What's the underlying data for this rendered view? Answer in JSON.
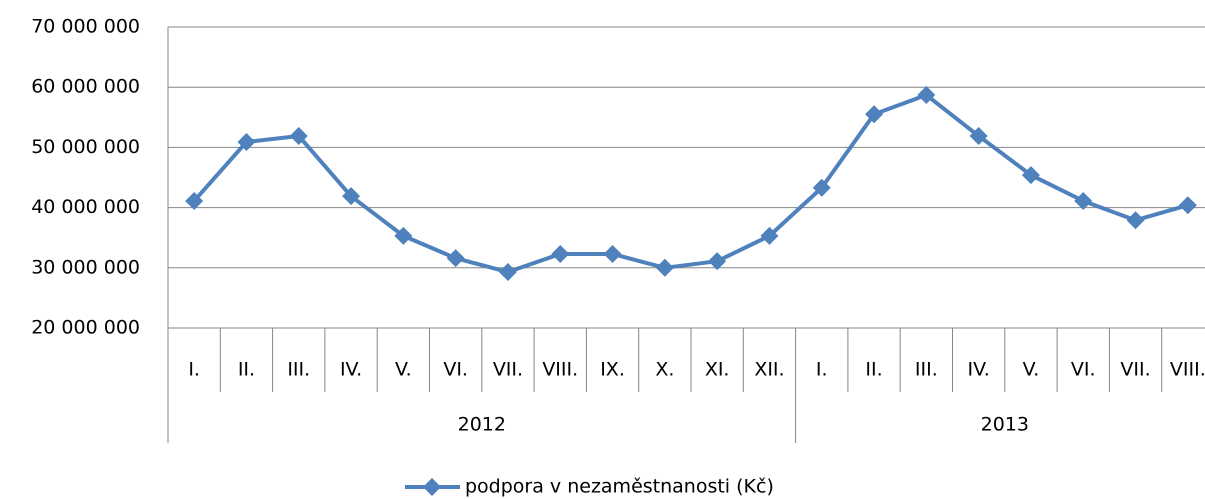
{
  "chart_data": {
    "type": "line",
    "groups": [
      {
        "name": "2012",
        "categories": [
          "I.",
          "II.",
          "III.",
          "IV.",
          "V.",
          "VI.",
          "VII.",
          "VIII.",
          "IX.",
          "X.",
          "XI.",
          "XII."
        ]
      },
      {
        "name": "2013",
        "categories": [
          "I.",
          "II.",
          "III.",
          "IV.",
          "V.",
          "VI.",
          "VII.",
          "VIII."
        ]
      }
    ],
    "series": [
      {
        "name": "podpora v nezaměstnanosti (Kč)",
        "color": "#4f81bd",
        "values": [
          41100000,
          50900000,
          51900000,
          41900000,
          35300000,
          31600000,
          29300000,
          32300000,
          32300000,
          30000000,
          31100000,
          35300000,
          43300000,
          55500000,
          58700000,
          51900000,
          45400000,
          41100000,
          37900000,
          40400000
        ]
      }
    ],
    "ylim": [
      20000000,
      70000000
    ],
    "yticks": [
      {
        "value": 20000000,
        "label": "20 000 000"
      },
      {
        "value": 30000000,
        "label": "30 000 000"
      },
      {
        "value": 40000000,
        "label": "40 000 000"
      },
      {
        "value": 50000000,
        "label": "50 000 000"
      },
      {
        "value": 60000000,
        "label": "60 000 000"
      },
      {
        "value": 70000000,
        "label": "70 000 000"
      }
    ],
    "grid": true,
    "legend": "bottom"
  }
}
